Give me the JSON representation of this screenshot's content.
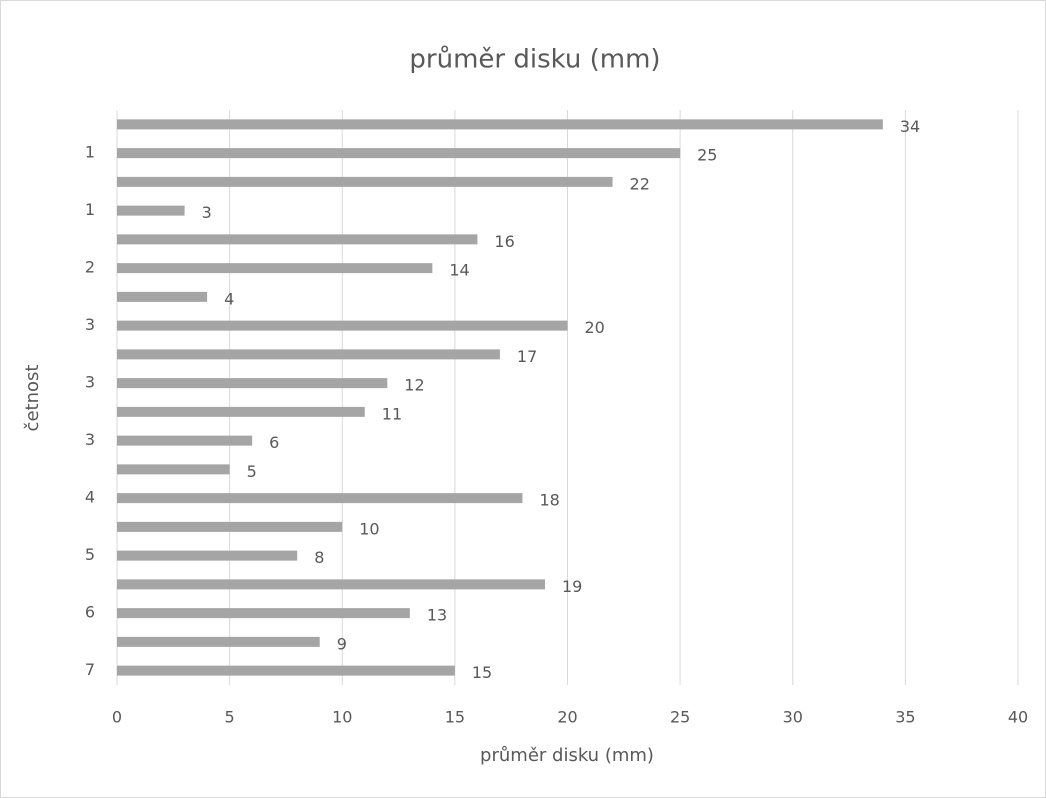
{
  "chart_data": {
    "type": "hbar",
    "title": "průměr disku (mm)",
    "x_label": "průměr disku (mm)",
    "y_label": "četnost",
    "categories": [
      null,
      "1",
      null,
      "1",
      null,
      "2",
      null,
      "3",
      null,
      "3",
      null,
      "3",
      null,
      "4",
      null,
      "5",
      null,
      "6",
      null,
      "7"
    ],
    "values": [
      34,
      25,
      22,
      3,
      16,
      14,
      4,
      20,
      17,
      12,
      11,
      6,
      5,
      18,
      10,
      8,
      19,
      13,
      9,
      15
    ],
    "color": "#a5a5a5",
    "xlim": [
      0,
      40
    ],
    "xticks": [
      0,
      5,
      10,
      15,
      20,
      25,
      30,
      35,
      40
    ],
    "grid": true
  }
}
